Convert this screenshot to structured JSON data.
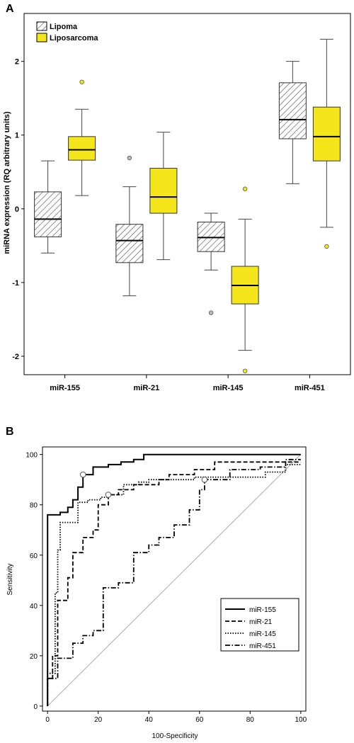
{
  "panels": {
    "a_label": "A",
    "b_label": "B"
  },
  "chart_data": [
    {
      "type": "boxplot",
      "panel": "A",
      "title": "",
      "xlabel": "",
      "ylabel": "miRNA expression (RQ arbitrary units)",
      "ylim": [
        -2.25,
        2.65
      ],
      "yticks": [
        -2,
        -1,
        0,
        1,
        2
      ],
      "grid": false,
      "legend_position": "top-left",
      "categories": [
        "miR-155",
        "miR-21",
        "miR-145",
        "miR-451"
      ],
      "series": [
        {
          "name": "Lipoma",
          "color": "#ffffff",
          "pattern": "hatched",
          "boxes": [
            {
              "min": -0.6,
              "q1": -0.38,
              "median": -0.14,
              "q3": 0.23,
              "max": 0.65,
              "outliers": []
            },
            {
              "min": -1.18,
              "q1": -0.73,
              "median": -0.43,
              "q3": -0.21,
              "max": 0.3,
              "outliers": [
                0.69
              ]
            },
            {
              "min": -0.83,
              "q1": -0.58,
              "median": -0.39,
              "q3": -0.18,
              "max": -0.06,
              "outliers": [
                -1.41
              ]
            },
            {
              "min": 0.34,
              "q1": 0.95,
              "median": 1.21,
              "q3": 1.71,
              "max": 2.0,
              "outliers": []
            }
          ]
        },
        {
          "name": "Liposarcoma",
          "color": "#f5e61b",
          "pattern": "solid",
          "boxes": [
            {
              "min": 0.18,
              "q1": 0.66,
              "median": 0.8,
              "q3": 0.98,
              "max": 1.35,
              "outliers": [
                1.72
              ]
            },
            {
              "min": -0.69,
              "q1": -0.06,
              "median": 0.16,
              "q3": 0.55,
              "max": 1.04,
              "outliers": []
            },
            {
              "min": -1.92,
              "q1": -1.29,
              "median": -1.04,
              "q3": -0.78,
              "max": -0.14,
              "outliers": [
                0.27,
                -2.2
              ]
            },
            {
              "min": -0.25,
              "q1": 0.65,
              "median": 0.98,
              "q3": 1.38,
              "max": 2.3,
              "outliers": [
                -0.51
              ]
            }
          ]
        }
      ]
    },
    {
      "type": "line",
      "panel": "B",
      "title": "",
      "xlabel": "100-Specificity",
      "ylabel": "Sensitivity",
      "xlim": [
        -2,
        102
      ],
      "ylim": [
        -2,
        103
      ],
      "xticks": [
        0,
        20,
        40,
        60,
        80,
        100
      ],
      "yticks": [
        0,
        20,
        40,
        60,
        80,
        100
      ],
      "grid": false,
      "legend_position": "bottom-right",
      "reference_line": [
        [
          0,
          0
        ],
        [
          100,
          100
        ]
      ],
      "series": [
        {
          "name": "miR-155",
          "style": "solid",
          "points": [
            [
              0,
              0
            ],
            [
              0,
              76
            ],
            [
              5,
              76
            ],
            [
              5,
              77
            ],
            [
              8,
              77
            ],
            [
              8,
              79
            ],
            [
              10,
              79
            ],
            [
              10,
              82
            ],
            [
              12,
              82
            ],
            [
              12,
              87
            ],
            [
              14,
              87
            ],
            [
              14,
              92
            ],
            [
              18,
              92
            ],
            [
              18,
              95
            ],
            [
              24,
              95
            ],
            [
              24,
              96
            ],
            [
              29,
              96
            ],
            [
              29,
              97
            ],
            [
              34,
              97
            ],
            [
              34,
              98
            ],
            [
              38,
              98
            ],
            [
              38,
              100
            ],
            [
              100,
              100
            ]
          ],
          "cutoff": [
            14,
            92
          ]
        },
        {
          "name": "miR-21",
          "style": "dashed",
          "points": [
            [
              0,
              0
            ],
            [
              0,
              11
            ],
            [
              2,
              11
            ],
            [
              2,
              20
            ],
            [
              4,
              20
            ],
            [
              4,
              42
            ],
            [
              8,
              42
            ],
            [
              8,
              51
            ],
            [
              10,
              51
            ],
            [
              10,
              61
            ],
            [
              14,
              61
            ],
            [
              14,
              67
            ],
            [
              18,
              67
            ],
            [
              18,
              70
            ],
            [
              20,
              70
            ],
            [
              20,
              80
            ],
            [
              24,
              80
            ],
            [
              24,
              84
            ],
            [
              28,
              84
            ],
            [
              28,
              86
            ],
            [
              34,
              86
            ],
            [
              34,
              88
            ],
            [
              44,
              88
            ],
            [
              44,
              90
            ],
            [
              48,
              90
            ],
            [
              48,
              92
            ],
            [
              58,
              92
            ],
            [
              58,
              94
            ],
            [
              66,
              94
            ],
            [
              66,
              97
            ],
            [
              100,
              97
            ]
          ]
        },
        {
          "name": "miR-145",
          "style": "dotted",
          "points": [
            [
              0,
              0
            ],
            [
              0,
              13
            ],
            [
              3,
              13
            ],
            [
              3,
              45
            ],
            [
              4,
              45
            ],
            [
              4,
              62
            ],
            [
              5,
              62
            ],
            [
              5,
              73
            ],
            [
              12,
              73
            ],
            [
              12,
              81
            ],
            [
              16,
              81
            ],
            [
              16,
              82
            ],
            [
              21,
              82
            ],
            [
              21,
              83
            ],
            [
              24,
              83
            ],
            [
              24,
              84
            ],
            [
              30,
              84
            ],
            [
              30,
              88
            ],
            [
              36,
              88
            ],
            [
              36,
              89
            ],
            [
              40,
              89
            ],
            [
              40,
              90
            ],
            [
              58,
              90
            ],
            [
              58,
              91
            ],
            [
              86,
              91
            ],
            [
              86,
              93
            ],
            [
              94,
              93
            ],
            [
              94,
              96
            ],
            [
              100,
              96
            ]
          ],
          "cutoff": [
            24,
            84
          ]
        },
        {
          "name": "miR-451",
          "style": "dash-dot",
          "points": [
            [
              0,
              0
            ],
            [
              0,
              11
            ],
            [
              4,
              11
            ],
            [
              4,
              19
            ],
            [
              10,
              19
            ],
            [
              10,
              25
            ],
            [
              14,
              25
            ],
            [
              14,
              28
            ],
            [
              18,
              28
            ],
            [
              18,
              30
            ],
            [
              22,
              30
            ],
            [
              22,
              47
            ],
            [
              28,
              47
            ],
            [
              28,
              49
            ],
            [
              34,
              49
            ],
            [
              34,
              61
            ],
            [
              40,
              61
            ],
            [
              40,
              64
            ],
            [
              44,
              64
            ],
            [
              44,
              67
            ],
            [
              50,
              67
            ],
            [
              50,
              72
            ],
            [
              56,
              72
            ],
            [
              56,
              78
            ],
            [
              60,
              78
            ],
            [
              60,
              86
            ],
            [
              62,
              86
            ],
            [
              62,
              90
            ],
            [
              72,
              90
            ],
            [
              72,
              94
            ],
            [
              84,
              94
            ],
            [
              84,
              95
            ],
            [
              94,
              95
            ],
            [
              94,
              98
            ],
            [
              100,
              98
            ]
          ],
          "cutoff": [
            62,
            90
          ]
        }
      ]
    }
  ]
}
